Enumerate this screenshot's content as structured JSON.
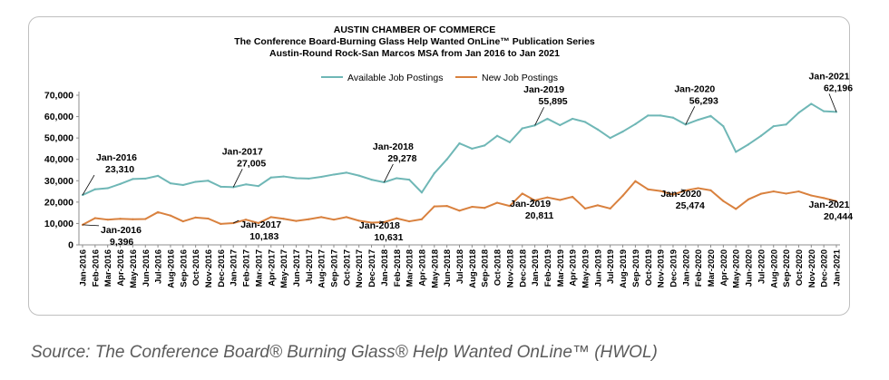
{
  "colors": {
    "available": "#6fb7b6",
    "new": "#d9813e",
    "axis": "#8c8c8c",
    "grid": "#e2e2e2"
  },
  "source_text": "Source: The Conference Board® Burning Glass® Help Wanted OnLine™ (HWOL)",
  "chart_data": {
    "type": "line",
    "title_lines": [
      "AUSTIN CHAMBER OF COMMERCE",
      "The Conference Board-Burning Glass Help Wanted OnLine™ Publication Series",
      "Austin-Round Rock-San Marcos MSA from Jan 2016 to Jan 2021"
    ],
    "xlabel": "",
    "ylabel": "",
    "ylim": [
      0,
      70000
    ],
    "yticks": [
      "0",
      "10,000",
      "20,000",
      "30,000",
      "40,000",
      "50,000",
      "60,000",
      "70,000"
    ],
    "legend_position": "top-center",
    "grid": false,
    "categories": [
      "Jan-2016",
      "Feb-2016",
      "Mar-2016",
      "Apr-2016",
      "May-2016",
      "Jun-2016",
      "Jul-2016",
      "Aug-2016",
      "Sep-2016",
      "Oct-2016",
      "Nov-2016",
      "Dec-2016",
      "Jan-2017",
      "Feb-2017",
      "Mar-2017",
      "Apr-2017",
      "May-2017",
      "Jun-2017",
      "Jul-2017",
      "Aug-2017",
      "Sep-2017",
      "Oct-2017",
      "Nov-2017",
      "Dec-2017",
      "Jan-2018",
      "Feb-2018",
      "Mar-2018",
      "Apr-2018",
      "May-2018",
      "Jun-2018",
      "Jul-2018",
      "Aug-2018",
      "Sep-2018",
      "Oct-2018",
      "Nov-2018",
      "Dec-2018",
      "Jan-2019",
      "Feb-2019",
      "Mar-2019",
      "Apr-2019",
      "May-2019",
      "Jun-2019",
      "Jul-2019",
      "Aug-2019",
      "Sep-2019",
      "Oct-2019",
      "Nov-2019",
      "Dec-2019",
      "Jan-2020",
      "Feb-2020",
      "Mar-2020",
      "Apr-2020",
      "May-2020",
      "Jun-2020",
      "Jul-2020",
      "Aug-2020",
      "Sep-2020",
      "Oct-2020",
      "Nov-2020",
      "Dec-2020",
      "Jan-2021"
    ],
    "series": [
      {
        "name": "Available Job Postings",
        "values": [
          23310,
          26000,
          26500,
          28500,
          30800,
          31000,
          32300,
          28800,
          28000,
          29500,
          30000,
          27200,
          27005,
          28300,
          27500,
          31500,
          32000,
          31200,
          31000,
          31800,
          32900,
          33800,
          32400,
          30500,
          29278,
          31200,
          30500,
          24500,
          33500,
          40000,
          47500,
          45000,
          46500,
          51000,
          48000,
          54500,
          55895,
          59000,
          56000,
          59000,
          57500,
          54000,
          50000,
          53000,
          56500,
          60500,
          60500,
          59500,
          56293,
          58500,
          60300,
          55500,
          43500,
          47000,
          51000,
          55500,
          56300,
          61800,
          66000,
          62500,
          62196
        ]
      },
      {
        "name": "New Job Postings",
        "values": [
          9396,
          12500,
          11800,
          12200,
          12000,
          12100,
          15300,
          13700,
          11000,
          12800,
          12300,
          9800,
          10183,
          11800,
          10200,
          13000,
          12200,
          11200,
          12000,
          13000,
          11800,
          13000,
          11300,
          10400,
          10631,
          12400,
          11000,
          12000,
          18000,
          18200,
          16000,
          17800,
          17300,
          19700,
          18200,
          24000,
          20811,
          22200,
          21000,
          22500,
          17000,
          18500,
          17000,
          23000,
          29800,
          26000,
          25200,
          23500,
          25474,
          26500,
          25500,
          20500,
          16800,
          21300,
          23900,
          25000,
          24000,
          25000,
          23100,
          21900,
          20444
        ]
      }
    ],
    "annotations": [
      {
        "series": 0,
        "index": 0,
        "label": "Jan-2016",
        "value_text": "23,310",
        "placement": "above-right"
      },
      {
        "series": 0,
        "index": 12,
        "label": "Jan-2017",
        "value_text": "27,005",
        "placement": "above"
      },
      {
        "series": 0,
        "index": 24,
        "label": "Jan-2018",
        "value_text": "29,278",
        "placement": "above"
      },
      {
        "series": 0,
        "index": 36,
        "label": "Jan-2019",
        "value_text": "55,895",
        "placement": "above"
      },
      {
        "series": 0,
        "index": 48,
        "label": "Jan-2020",
        "value_text": "56,293",
        "placement": "above"
      },
      {
        "series": 0,
        "index": 60,
        "label": "Jan-2021",
        "value_text": "62,196",
        "placement": "above"
      },
      {
        "series": 1,
        "index": 0,
        "label": "Jan-2016",
        "value_text": "9,396",
        "placement": "below-right"
      },
      {
        "series": 1,
        "index": 12,
        "label": "Jan-2017",
        "value_text": "10,183",
        "placement": "right"
      },
      {
        "series": 1,
        "index": 24,
        "label": "Jan-2018",
        "value_text": "10,631",
        "placement": "below"
      },
      {
        "series": 1,
        "index": 36,
        "label": "Jan-2019",
        "value_text": "20,811",
        "placement": "below"
      },
      {
        "series": 1,
        "index": 48,
        "label": "Jan-2020",
        "value_text": "25,474",
        "placement": "below"
      },
      {
        "series": 1,
        "index": 60,
        "label": "Jan-2021",
        "value_text": "20,444",
        "placement": "below"
      }
    ]
  }
}
